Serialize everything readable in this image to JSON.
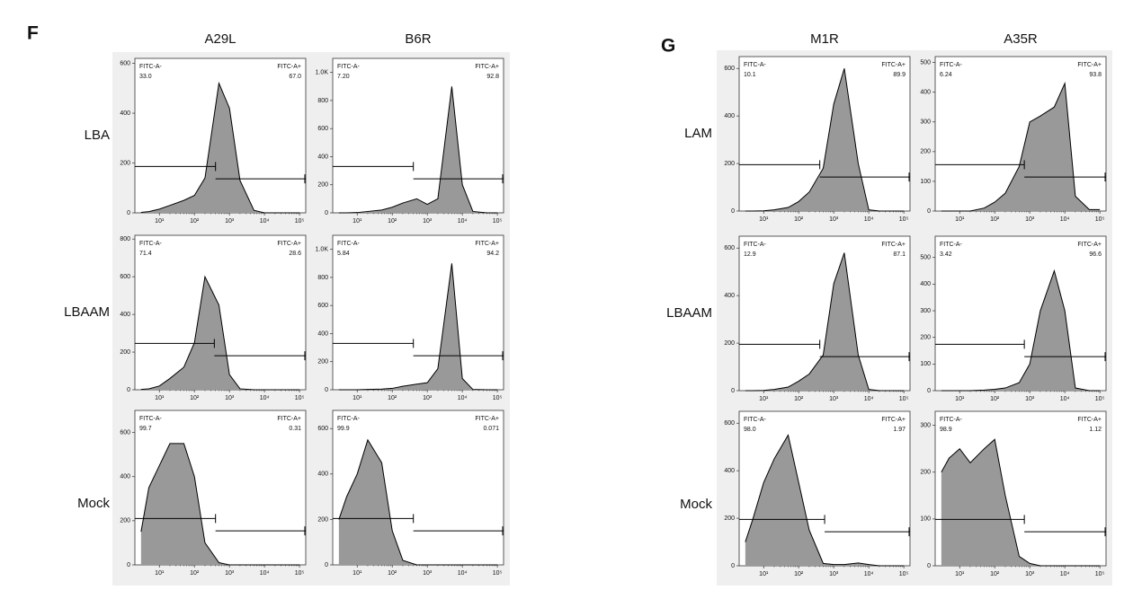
{
  "panels": [
    {
      "letter": "F",
      "columns": [
        "A29L",
        "B6R"
      ],
      "rows": [
        "LBA",
        "LBAAM",
        "Mock"
      ]
    },
    {
      "letter": "G",
      "columns": [
        "M1R",
        "A35R"
      ],
      "rows": [
        "LAM",
        "LBAAM",
        "Mock"
      ]
    }
  ],
  "chart_data": [
    {
      "type": "histogram",
      "log_x": true,
      "color": "#999999",
      "xlim": [
        2,
        150000
      ],
      "ylim": [
        0,
        620
      ],
      "yticks": [
        0,
        200,
        400,
        600
      ],
      "xticks": [
        {
          "value": 10,
          "label": "10¹"
        },
        {
          "value": 100,
          "label": "10²"
        },
        {
          "value": 1000,
          "label": "10³"
        },
        {
          "value": 10000,
          "label": "10⁴"
        },
        {
          "value": 100000,
          "label": "10⁵"
        }
      ],
      "x": [
        3,
        5,
        10,
        20,
        50,
        100,
        200,
        500,
        1000,
        2000,
        5000,
        10000,
        20000,
        50000,
        100000
      ],
      "values": [
        2,
        5,
        15,
        30,
        50,
        70,
        140,
        520,
        420,
        130,
        10,
        0,
        0,
        0,
        0
      ],
      "gates": {
        "names": [
          "FITC-A-",
          "FITC-A+"
        ],
        "values": [
          33,
          67
        ],
        "value_labels": [
          "33.0",
          "67.0"
        ],
        "threshold": 400
      }
    },
    {
      "type": "histogram",
      "log_x": true,
      "color": "#999999",
      "xlim": [
        2,
        150000
      ],
      "ylim": [
        0,
        1100
      ],
      "yticks": [
        0,
        200,
        400,
        600,
        800,
        {
          "value": 1000,
          "label": "1.0K"
        }
      ],
      "xticks": [
        {
          "value": 10,
          "label": "10¹"
        },
        {
          "value": 100,
          "label": "10²"
        },
        {
          "value": 1000,
          "label": "10³"
        },
        {
          "value": 10000,
          "label": "10⁴"
        },
        {
          "value": 100000,
          "label": "10⁵"
        }
      ],
      "x": [
        3,
        5,
        10,
        20,
        50,
        100,
        200,
        500,
        1000,
        2000,
        5000,
        10000,
        20000,
        50000,
        100000
      ],
      "values": [
        0,
        0,
        2,
        10,
        20,
        40,
        70,
        100,
        60,
        100,
        900,
        200,
        10,
        0,
        0
      ],
      "gates": {
        "names": [
          "FITC-A-",
          "FITC-A+"
        ],
        "values": [
          7.2,
          92.8
        ],
        "value_labels": [
          "7.20",
          "92.8"
        ],
        "threshold": 400
      }
    },
    {
      "type": "histogram",
      "log_x": true,
      "color": "#999999",
      "xlim": [
        2,
        150000
      ],
      "ylim": [
        0,
        820
      ],
      "yticks": [
        0,
        200,
        400,
        600,
        800
      ],
      "xticks": [
        {
          "value": 10,
          "label": "10¹"
        },
        {
          "value": 100,
          "label": "10²"
        },
        {
          "value": 1000,
          "label": "10³"
        },
        {
          "value": 10000,
          "label": "10⁴"
        },
        {
          "value": 100000,
          "label": "10⁵"
        }
      ],
      "x": [
        3,
        5,
        10,
        20,
        50,
        100,
        200,
        500,
        1000,
        2000,
        5000,
        10000,
        20000,
        50000,
        100000
      ],
      "values": [
        2,
        5,
        20,
        60,
        120,
        250,
        600,
        450,
        80,
        5,
        0,
        0,
        0,
        0,
        0
      ],
      "gates": {
        "names": [
          "FITC-A-",
          "FITC-A+"
        ],
        "values": [
          71.4,
          28.6
        ],
        "value_labels": [
          "71.4",
          "28.6"
        ],
        "threshold": 370
      }
    },
    {
      "type": "histogram",
      "log_x": true,
      "color": "#999999",
      "xlim": [
        2,
        150000
      ],
      "ylim": [
        0,
        1100
      ],
      "yticks": [
        0,
        200,
        400,
        600,
        800,
        {
          "value": 1000,
          "label": "1.0K"
        }
      ],
      "xticks": [
        {
          "value": 10,
          "label": "10¹"
        },
        {
          "value": 100,
          "label": "10²"
        },
        {
          "value": 1000,
          "label": "10³"
        },
        {
          "value": 10000,
          "label": "10⁴"
        },
        {
          "value": 100000,
          "label": "10⁵"
        }
      ],
      "x": [
        3,
        5,
        10,
        20,
        50,
        100,
        200,
        500,
        1000,
        2000,
        5000,
        10000,
        20000,
        50000,
        100000
      ],
      "values": [
        0,
        0,
        0,
        2,
        5,
        10,
        25,
        40,
        50,
        150,
        900,
        80,
        2,
        0,
        0
      ],
      "gates": {
        "names": [
          "FITC-A-",
          "FITC-A+"
        ],
        "values": [
          5.84,
          94.2
        ],
        "value_labels": [
          "5.84",
          "94.2"
        ],
        "threshold": 400
      }
    },
    {
      "type": "histogram",
      "log_x": true,
      "color": "#999999",
      "xlim": [
        2,
        150000
      ],
      "ylim": [
        0,
        700
      ],
      "yticks": [
        0,
        200,
        400,
        600
      ],
      "xticks": [
        {
          "value": 10,
          "label": "10¹"
        },
        {
          "value": 100,
          "label": "10²"
        },
        {
          "value": 1000,
          "label": "10³"
        },
        {
          "value": 10000,
          "label": "10⁴"
        },
        {
          "value": 100000,
          "label": "10⁵"
        }
      ],
      "x": [
        3,
        5,
        10,
        20,
        50,
        100,
        200,
        500,
        1000,
        2000,
        5000,
        10000,
        20000,
        50000,
        100000
      ],
      "values": [
        150,
        350,
        450,
        550,
        550,
        400,
        100,
        10,
        0,
        0,
        0,
        0,
        0,
        0,
        0
      ],
      "gates": {
        "names": [
          "FITC-A-",
          "FITC-A+"
        ],
        "values": [
          99.7,
          0.31
        ],
        "value_labels": [
          "99.7",
          "0.31"
        ],
        "threshold": 400
      }
    },
    {
      "type": "histogram",
      "log_x": true,
      "color": "#999999",
      "xlim": [
        2,
        150000
      ],
      "ylim": [
        0,
        680
      ],
      "yticks": [
        0,
        200,
        400,
        600
      ],
      "xticks": [
        {
          "value": 10,
          "label": "10¹"
        },
        {
          "value": 100,
          "label": "10²"
        },
        {
          "value": 1000,
          "label": "10³"
        },
        {
          "value": 10000,
          "label": "10⁴"
        },
        {
          "value": 100000,
          "label": "10⁵"
        }
      ],
      "x": [
        3,
        5,
        10,
        20,
        50,
        100,
        200,
        500,
        1000,
        2000,
        5000,
        10000,
        20000,
        50000,
        100000
      ],
      "values": [
        200,
        300,
        400,
        550,
        450,
        150,
        20,
        0,
        0,
        0,
        0,
        0,
        0,
        0,
        0
      ],
      "gates": {
        "names": [
          "FITC-A-",
          "FITC-A+"
        ],
        "values": [
          99.9,
          0.071
        ],
        "value_labels": [
          "99.9",
          "0.071"
        ],
        "threshold": 400
      }
    },
    {
      "type": "histogram",
      "log_x": true,
      "color": "#999999",
      "xlim": [
        2,
        150000
      ],
      "ylim": [
        0,
        650
      ],
      "yticks": [
        0,
        200,
        400,
        600
      ],
      "xticks": [
        {
          "value": 10,
          "label": "10¹"
        },
        {
          "value": 100,
          "label": "10²"
        },
        {
          "value": 1000,
          "label": "10³"
        },
        {
          "value": 10000,
          "label": "10⁴"
        },
        {
          "value": 100000,
          "label": "10⁵"
        }
      ],
      "x": [
        3,
        5,
        10,
        20,
        50,
        100,
        200,
        500,
        1000,
        2000,
        5000,
        10000,
        20000,
        50000,
        100000
      ],
      "values": [
        0,
        0,
        1,
        5,
        15,
        40,
        80,
        180,
        450,
        600,
        200,
        5,
        0,
        0,
        0
      ],
      "gates": {
        "names": [
          "FITC-A-",
          "FITC-A+"
        ],
        "values": [
          10.1,
          89.9
        ],
        "value_labels": [
          "10.1",
          "89.9"
        ],
        "threshold": 400
      }
    },
    {
      "type": "histogram",
      "log_x": true,
      "color": "#999999",
      "xlim": [
        2,
        150000
      ],
      "ylim": [
        0,
        520
      ],
      "yticks": [
        0,
        100,
        200,
        300,
        400,
        500
      ],
      "xticks": [
        {
          "value": 10,
          "label": "10¹"
        },
        {
          "value": 100,
          "label": "10²"
        },
        {
          "value": 1000,
          "label": "10³"
        },
        {
          "value": 10000,
          "label": "10⁴"
        },
        {
          "value": 100000,
          "label": "10⁵"
        }
      ],
      "x": [
        3,
        5,
        10,
        20,
        50,
        100,
        200,
        500,
        1000,
        2000,
        5000,
        10000,
        20000,
        50000,
        100000
      ],
      "values": [
        0,
        0,
        0,
        0,
        10,
        30,
        60,
        150,
        300,
        320,
        350,
        430,
        50,
        5,
        5
      ],
      "gates": {
        "names": [
          "FITC-A-",
          "FITC-A+"
        ],
        "values": [
          6.24,
          93.8
        ],
        "value_labels": [
          "6.24",
          "93.8"
        ],
        "threshold": 700
      }
    },
    {
      "type": "histogram",
      "log_x": true,
      "color": "#999999",
      "xlim": [
        2,
        150000
      ],
      "ylim": [
        0,
        650
      ],
      "yticks": [
        0,
        200,
        400,
        600
      ],
      "xticks": [
        {
          "value": 10,
          "label": "10¹"
        },
        {
          "value": 100,
          "label": "10²"
        },
        {
          "value": 1000,
          "label": "10³"
        },
        {
          "value": 10000,
          "label": "10⁴"
        },
        {
          "value": 100000,
          "label": "10⁵"
        }
      ],
      "x": [
        3,
        5,
        10,
        20,
        50,
        100,
        200,
        500,
        1000,
        2000,
        5000,
        10000,
        20000,
        50000,
        100000
      ],
      "values": [
        0,
        0,
        1,
        5,
        15,
        40,
        70,
        150,
        450,
        580,
        150,
        5,
        0,
        0,
        0
      ],
      "gates": {
        "names": [
          "FITC-A-",
          "FITC-A+"
        ],
        "values": [
          12.9,
          87.1
        ],
        "value_labels": [
          "12.9",
          "87.1"
        ],
        "threshold": 400
      }
    },
    {
      "type": "histogram",
      "log_x": true,
      "color": "#999999",
      "xlim": [
        2,
        150000
      ],
      "ylim": [
        0,
        580
      ],
      "yticks": [
        0,
        100,
        200,
        300,
        400,
        500
      ],
      "xticks": [
        {
          "value": 10,
          "label": "10¹"
        },
        {
          "value": 100,
          "label": "10²"
        },
        {
          "value": 1000,
          "label": "10³"
        },
        {
          "value": 10000,
          "label": "10⁴"
        },
        {
          "value": 100000,
          "label": "10⁵"
        }
      ],
      "x": [
        3,
        5,
        10,
        20,
        50,
        100,
        200,
        500,
        1000,
        2000,
        5000,
        10000,
        20000,
        50000,
        100000
      ],
      "values": [
        0,
        0,
        0,
        0,
        2,
        5,
        10,
        30,
        100,
        300,
        450,
        300,
        10,
        0,
        0
      ],
      "gates": {
        "names": [
          "FITC-A-",
          "FITC-A+"
        ],
        "values": [
          3.42,
          96.6
        ],
        "value_labels": [
          "3.42",
          "96.6"
        ],
        "threshold": 700
      }
    },
    {
      "type": "histogram",
      "log_x": true,
      "color": "#999999",
      "xlim": [
        2,
        150000
      ],
      "ylim": [
        0,
        650
      ],
      "yticks": [
        0,
        200,
        400,
        600
      ],
      "xticks": [
        {
          "value": 10,
          "label": "10¹"
        },
        {
          "value": 100,
          "label": "10²"
        },
        {
          "value": 1000,
          "label": "10³"
        },
        {
          "value": 10000,
          "label": "10⁴"
        },
        {
          "value": 100000,
          "label": "10⁵"
        }
      ],
      "x": [
        3,
        5,
        10,
        20,
        50,
        100,
        200,
        500,
        1000,
        2000,
        5000,
        10000,
        20000,
        50000,
        100000
      ],
      "values": [
        100,
        200,
        350,
        450,
        550,
        350,
        150,
        10,
        5,
        5,
        12,
        5,
        0,
        0,
        0
      ],
      "gates": {
        "names": [
          "FITC-A-",
          "FITC-A+"
        ],
        "values": [
          98,
          1.97
        ],
        "value_labels": [
          "98.0",
          "1.97"
        ],
        "threshold": 550
      }
    },
    {
      "type": "histogram",
      "log_x": true,
      "color": "#999999",
      "xlim": [
        2,
        150000
      ],
      "ylim": [
        0,
        330
      ],
      "yticks": [
        0,
        100,
        200,
        300
      ],
      "xticks": [
        {
          "value": 10,
          "label": "10¹"
        },
        {
          "value": 100,
          "label": "10²"
        },
        {
          "value": 1000,
          "label": "10³"
        },
        {
          "value": 10000,
          "label": "10⁴"
        },
        {
          "value": 100000,
          "label": "10⁵"
        }
      ],
      "x": [
        3,
        5,
        10,
        20,
        50,
        100,
        200,
        500,
        1000,
        2000,
        5000,
        10000,
        20000,
        50000,
        100000
      ],
      "values": [
        200,
        230,
        250,
        220,
        250,
        270,
        150,
        20,
        5,
        0,
        0,
        0,
        0,
        0,
        0
      ],
      "gates": {
        "names": [
          "FITC-A-",
          "FITC-A+"
        ],
        "values": [
          98.9,
          1.12
        ],
        "value_labels": [
          "98.9",
          "1.12"
        ],
        "threshold": 700
      }
    }
  ]
}
